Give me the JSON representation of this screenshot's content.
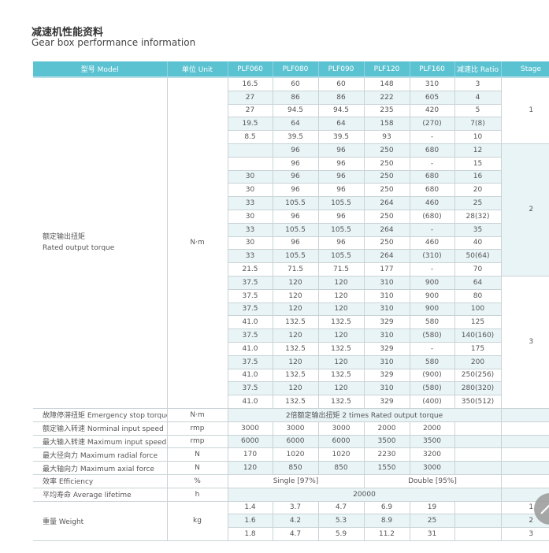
{
  "title_cn": "减速机性能资料",
  "title_en": "Gear box performance information",
  "header": [
    "型号 Model",
    "单位 Unit",
    "PLF060",
    "PLF080",
    "PLF090",
    "PLF120",
    "PLF160",
    "减速比 Ratio",
    "Stage"
  ],
  "torque": {
    "label_cn": "额定输出扭矩",
    "label_en": "Rated output torque",
    "unit": "N·m",
    "stages": [
      "1",
      "2",
      "3"
    ],
    "rows": [
      [
        "16.5",
        "60",
        "60",
        "148",
        "310",
        "3"
      ],
      [
        "27",
        "86",
        "86",
        "222",
        "605",
        "4"
      ],
      [
        "27",
        "94.5",
        "94.5",
        "235",
        "420",
        "5"
      ],
      [
        "19.5",
        "64",
        "64",
        "158",
        "(270)",
        "7(8)"
      ],
      [
        "8.5",
        "39.5",
        "39.5",
        "93",
        "-",
        "10"
      ],
      [
        "",
        "96",
        "96",
        "250",
        "680",
        "12"
      ],
      [
        "",
        "96",
        "96",
        "250",
        "-",
        "15"
      ],
      [
        "30",
        "96",
        "96",
        "250",
        "680",
        "16"
      ],
      [
        "30",
        "96",
        "96",
        "250",
        "680",
        "20"
      ],
      [
        "33",
        "105.5",
        "105.5",
        "264",
        "460",
        "25"
      ],
      [
        "30",
        "96",
        "96",
        "250",
        "(680)",
        "28(32)"
      ],
      [
        "33",
        "105.5",
        "105.5",
        "264",
        "-",
        "35"
      ],
      [
        "30",
        "96",
        "96",
        "250",
        "460",
        "40"
      ],
      [
        "33",
        "105.5",
        "105.5",
        "264",
        "(310)",
        "50(64)"
      ],
      [
        "21.5",
        "71.5",
        "71.5",
        "177",
        "-",
        "70"
      ],
      [
        "37.5",
        "120",
        "120",
        "310",
        "900",
        "64"
      ],
      [
        "37.5",
        "120",
        "120",
        "310",
        "900",
        "80"
      ],
      [
        "37.5",
        "120",
        "120",
        "310",
        "900",
        "100"
      ],
      [
        "41.0",
        "132.5",
        "132.5",
        "329",
        "580",
        "125"
      ],
      [
        "37.5",
        "120",
        "120",
        "310",
        "(580)",
        "140(160)"
      ],
      [
        "41.0",
        "132.5",
        "132.5",
        "329",
        "-",
        "175"
      ],
      [
        "37.5",
        "120",
        "120",
        "310",
        "580",
        "200"
      ],
      [
        "41.0",
        "132.5",
        "132.5",
        "329",
        "(900)",
        "250(256)"
      ],
      [
        "37.5",
        "120",
        "120",
        "310",
        "(580)",
        "280(320)"
      ],
      [
        "41.0",
        "132.5",
        "132.5",
        "329",
        "(400)",
        "350(512)"
      ]
    ]
  },
  "emergency": {
    "label": "故障停滞扭矩 Emergency stop torque",
    "unit": "N·m",
    "value": "2倍额定输出扭矩  2 times Rated output torque"
  },
  "specs": [
    {
      "label": "额定输入转速 Norminal input speed",
      "unit": "rmp",
      "values": [
        "3000",
        "3000",
        "3000",
        "2000",
        "2000"
      ]
    },
    {
      "label": "最大输入转速 Maximum input speed",
      "unit": "rmp",
      "values": [
        "6000",
        "6000",
        "6000",
        "3500",
        "3500"
      ]
    },
    {
      "label": "最大径向力 Maximum radial force",
      "unit": "N",
      "values": [
        "170",
        "1020",
        "1020",
        "2230",
        "3200"
      ]
    },
    {
      "label": "最大轴向力 Maximum axial force",
      "unit": "N",
      "values": [
        "120",
        "850",
        "850",
        "1550",
        "3000"
      ]
    }
  ],
  "efficiency": {
    "label": "效率 Efficiency",
    "unit": "%",
    "single": "Single [97%]",
    "double": "Double [95%]"
  },
  "lifetime": {
    "label": "平均寿命 Average lifetime",
    "unit": "h",
    "value": "20000"
  },
  "weight": {
    "label": "重量 Weight",
    "unit": "kg",
    "rows": [
      {
        "values": [
          "1.4",
          "3.7",
          "4.7",
          "6.9",
          "19"
        ],
        "stage": "1"
      },
      {
        "values": [
          "1.6",
          "4.2",
          "5.3",
          "8.9",
          "25"
        ],
        "stage": "2"
      },
      {
        "values": [
          "1.8",
          "4.7",
          "5.9",
          "11.2",
          "31"
        ],
        "stage": "3"
      }
    ]
  },
  "colors": {
    "header": "#5bc2d1",
    "shade": "#e9f4f7"
  },
  "scroll_top_icon": "arrow-up-icon"
}
